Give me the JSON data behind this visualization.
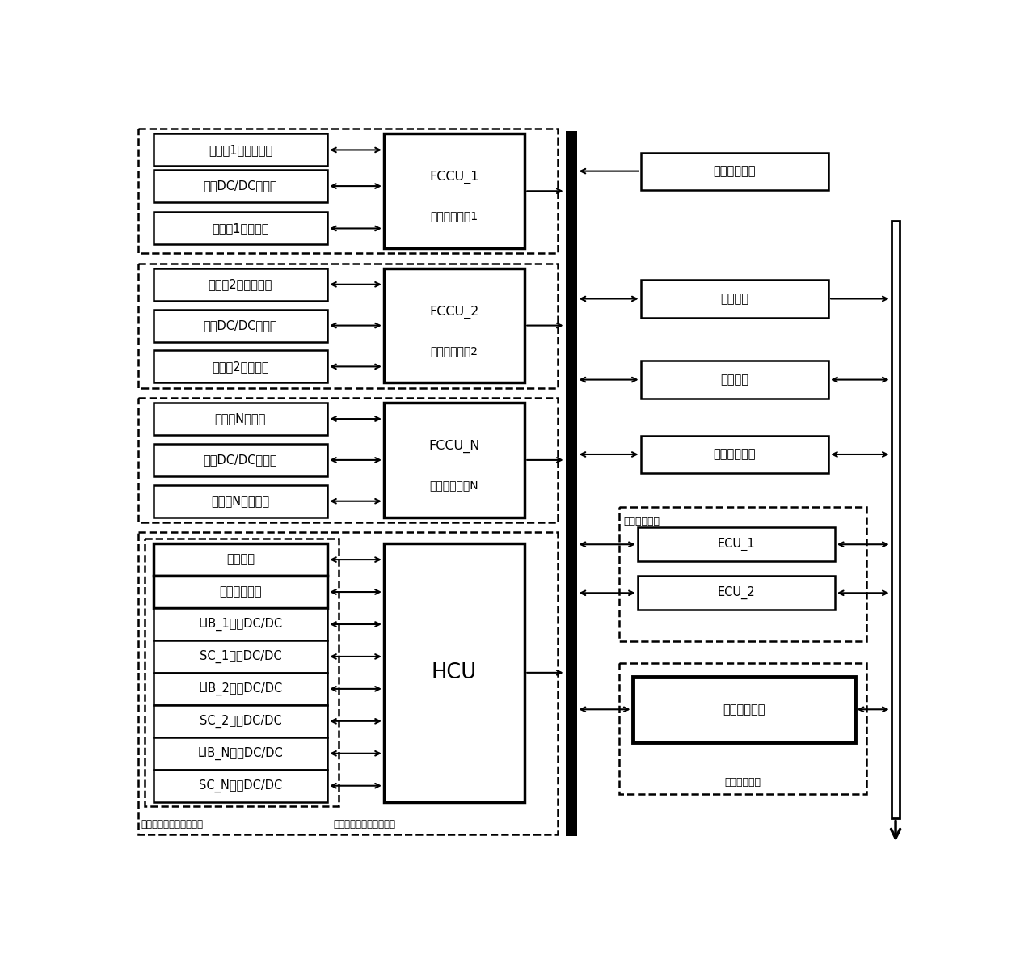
{
  "fig_width": 12.57,
  "fig_height": 11.86,
  "bg_color": "#ffffff",
  "box_color": "#ffffff",
  "box_edge": "#000000",
  "text_color": "#000000",
  "font_size": 10.5,
  "left_boxes_1": [
    "燃料甖1内部控制器",
    "单向DC/DC斩波器",
    "燃料甖1辅机系统"
  ],
  "left_boxes_2": [
    "燃料甖2内部控制器",
    "单向DC/DC斩波器",
    "燃料甖2辅机系统"
  ],
  "left_boxes_3": [
    "燃料甖N控制器",
    "单向DC/DC斩波器",
    "燃料甖N辅机系统"
  ],
  "left_boxes_4": [
    "储氢模块",
    "列车硬线连接",
    "LIB_1双向DC/DC",
    "SC_1双向DC/DC",
    "LIB_2双向DC/DC",
    "SC_2双向DC/DC",
    "LIB_N双向DC/DC",
    "SC_N双向DC/DC"
  ],
  "fccu1_top": "FCCU_1",
  "fccu1_bot": "燃料电池系瀖1",
  "fccu2_top": "FCCU_2",
  "fccu2_bot": "燃料电池系瀖2",
  "fccuN_top": "FCCU_N",
  "fccuN_bot": "燃料电池系瀖N",
  "hcu_label": "HCU",
  "right_box1": "动力系统网络",
  "right_box2": "车辆主网",
  "right_box3": "总控单元",
  "right_box4": "主网其他设备",
  "energy_label": "能量管理单元",
  "ecu1_label": "ECU_1",
  "ecu2_label": "ECU_2",
  "data_storage_label": "数据存储设备",
  "data_unit_label": "数据存储单元",
  "outer_label_left": "超级电容、蓄电池子系统",
  "outer_label_right": "硬线及储能设备控制系统"
}
